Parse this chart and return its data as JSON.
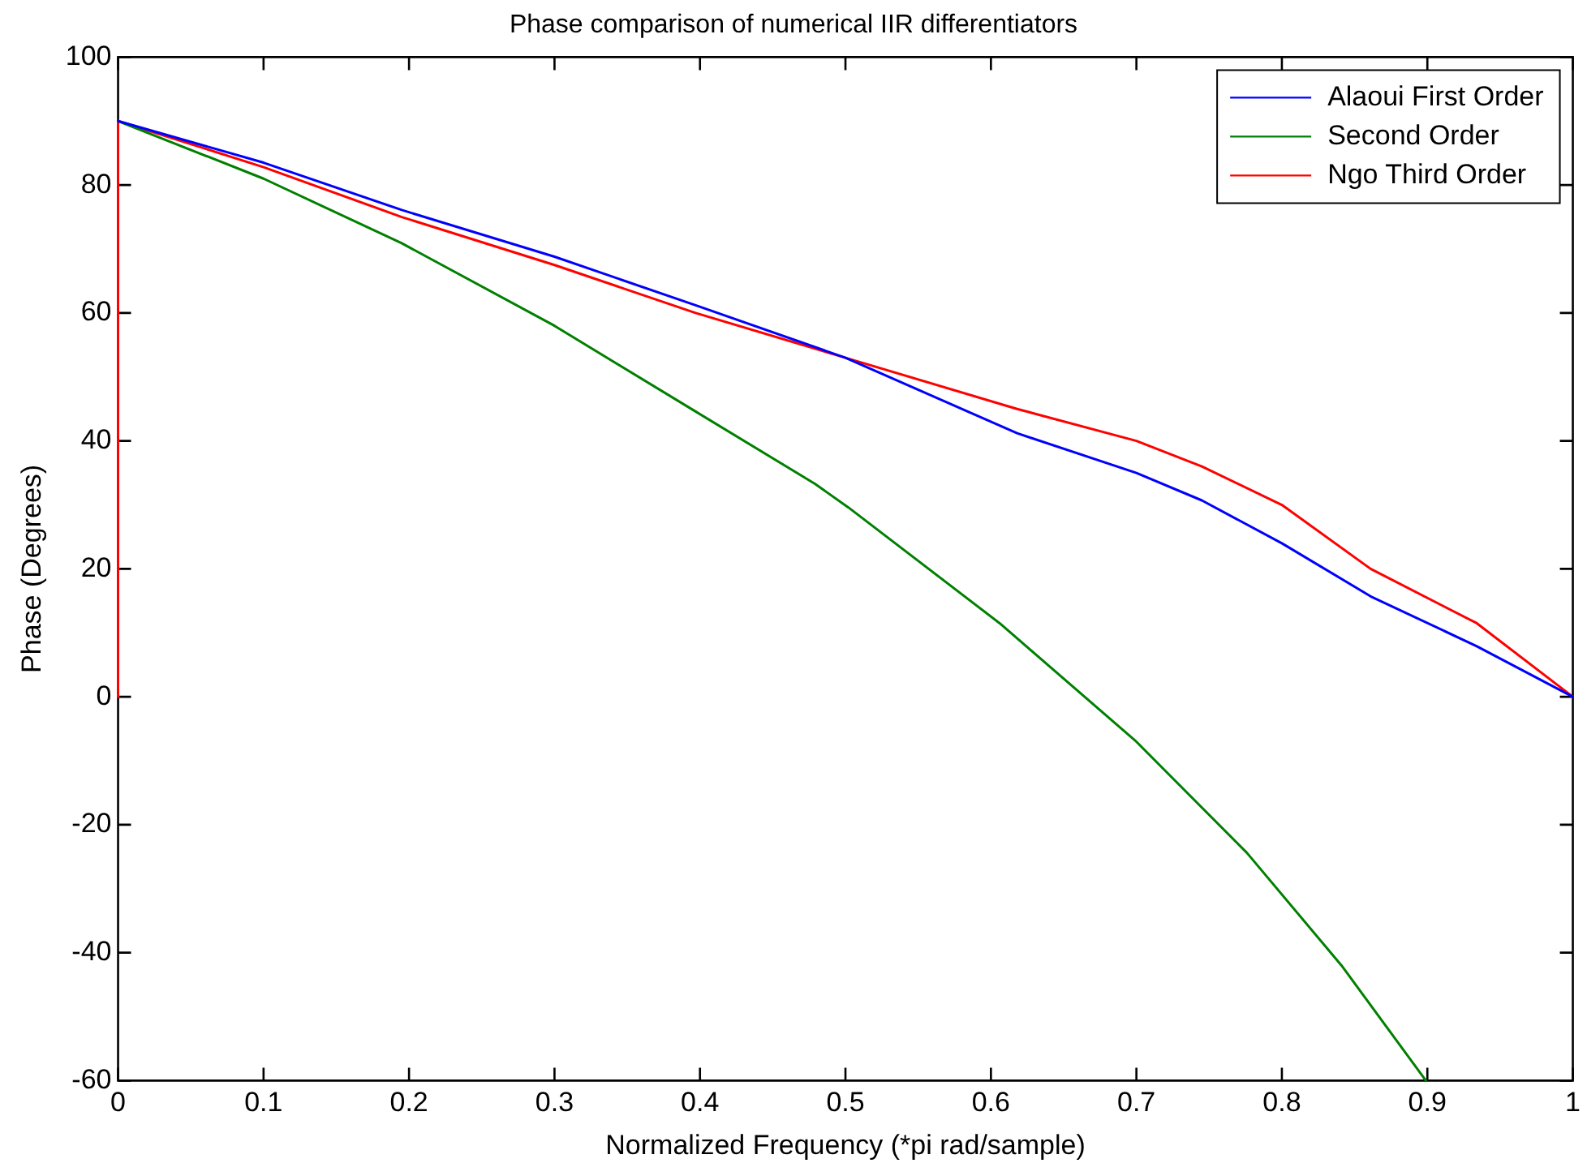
{
  "chart_data": {
    "type": "line",
    "title": "Phase comparison of numerical IIR differentiators",
    "xlabel": "Normalized Frequency (*pi rad/sample)",
    "ylabel": "Phase (Degrees)",
    "xlim": [
      0,
      1
    ],
    "ylim": [
      -60,
      100
    ],
    "xticks": [
      0,
      0.1,
      0.2,
      0.3,
      0.4,
      0.5,
      0.6,
      0.7,
      0.8,
      0.9,
      1
    ],
    "yticks": [
      -60,
      -40,
      -20,
      0,
      20,
      40,
      60,
      80,
      100
    ],
    "legend": "top right",
    "marker": "none",
    "line_style": "solid",
    "series": [
      {
        "name": "Alaoui First Order",
        "color": "#0000ff",
        "x": [
          0,
          0.1,
          0.195,
          0.3,
          0.397,
          0.5,
          0.618,
          0.7,
          0.745,
          0.8,
          0.861,
          0.934,
          1
        ],
        "values": [
          90,
          83.5,
          76.1,
          68.8,
          61.2,
          53,
          41.2,
          35,
          30.7,
          24,
          15.7,
          7.9,
          0
        ]
      },
      {
        "name": "Second Order",
        "color": "#008000",
        "x": [
          0,
          0.1,
          0.195,
          0.3,
          0.397,
          0.479,
          0.502,
          0.606,
          0.699,
          0.776,
          0.841,
          0.899
        ],
        "values": [
          90,
          81,
          70.9,
          58,
          44.6,
          33.3,
          29.6,
          11.5,
          -6.8,
          -24.4,
          -42,
          -60
        ]
      },
      {
        "name": "Ngo Third Order",
        "color": "#ff0000",
        "x": [
          0,
          0,
          0.1,
          0.195,
          0.3,
          0.397,
          0.5,
          0.618,
          0.7,
          0.745,
          0.8,
          0.861,
          0.934,
          1
        ],
        "values": [
          0,
          90,
          82.8,
          75,
          67.5,
          60,
          53,
          45,
          40,
          36,
          30,
          20,
          11.5,
          0
        ]
      }
    ]
  }
}
